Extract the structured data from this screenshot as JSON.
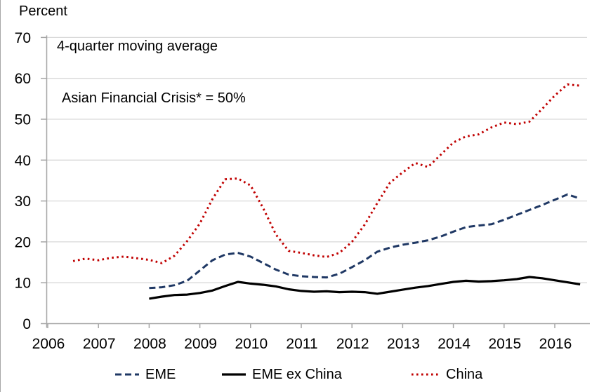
{
  "page": {
    "percent_label": "Percent"
  },
  "annotations": {
    "line1": "4-quarter moving average",
    "line2": "Asian Financial Crisis* = 50%"
  },
  "colors": {
    "eme": "#1f3864",
    "eme_ex_china": "#000000",
    "china": "#c00000",
    "gridline": "#d9d9d9",
    "axis": "#a6a6a6",
    "text": "#000000"
  },
  "chart_data": {
    "type": "line",
    "title": "",
    "xlabel": "",
    "ylabel": "Percent",
    "ylim": [
      0,
      70
    ],
    "yticks": [
      0,
      10,
      20,
      30,
      40,
      50,
      60,
      70
    ],
    "xticks": [
      2006,
      2007,
      2008,
      2009,
      2010,
      2011,
      2012,
      2013,
      2014,
      2015,
      2016
    ],
    "grid": true,
    "legend_position": "bottom",
    "annotation_notes": [
      "4-quarter moving average",
      "Asian Financial Crisis* = 50%"
    ],
    "series": [
      {
        "name": "EME",
        "color": "#1f3864",
        "style": "dashed",
        "x_start": 2008.0,
        "x_step": 0.25,
        "values": [
          8.7,
          8.9,
          9.4,
          10.5,
          13.0,
          15.5,
          16.9,
          17.3,
          16.4,
          14.8,
          13.2,
          12.0,
          11.6,
          11.4,
          11.3,
          12.2,
          13.8,
          15.5,
          17.6,
          18.6,
          19.3,
          19.8,
          20.4,
          21.3,
          22.5,
          23.6,
          24.0,
          24.3,
          25.4,
          26.6,
          27.8,
          29.0,
          30.3,
          31.6,
          30.6
        ]
      },
      {
        "name": "EME ex China",
        "color": "#000000",
        "style": "solid",
        "x_start": 2008.0,
        "x_step": 0.25,
        "values": [
          6.1,
          6.6,
          7.0,
          7.1,
          7.5,
          8.1,
          9.2,
          10.2,
          9.8,
          9.5,
          9.1,
          8.4,
          8.0,
          7.8,
          7.9,
          7.7,
          7.8,
          7.7,
          7.3,
          7.8,
          8.3,
          8.8,
          9.2,
          9.7,
          10.2,
          10.5,
          10.3,
          10.4,
          10.6,
          10.9,
          11.4,
          11.1,
          10.6,
          10.1,
          9.6
        ]
      },
      {
        "name": "China",
        "color": "#c00000",
        "style": "dotted",
        "x_start": 2006.5,
        "x_step": 0.25,
        "values": [
          15.3,
          15.9,
          15.5,
          16.1,
          16.4,
          16.0,
          15.6,
          14.8,
          16.6,
          20.2,
          24.5,
          30.5,
          35.3,
          35.5,
          33.8,
          28.2,
          21.8,
          17.8,
          17.3,
          16.7,
          16.3,
          17.3,
          20.0,
          24.2,
          29.5,
          34.5,
          37.0,
          39.3,
          38.3,
          41.3,
          44.3,
          45.8,
          46.3,
          48.0,
          49.2,
          48.8,
          49.4,
          52.5,
          55.8,
          58.5,
          58.2
        ]
      }
    ]
  }
}
